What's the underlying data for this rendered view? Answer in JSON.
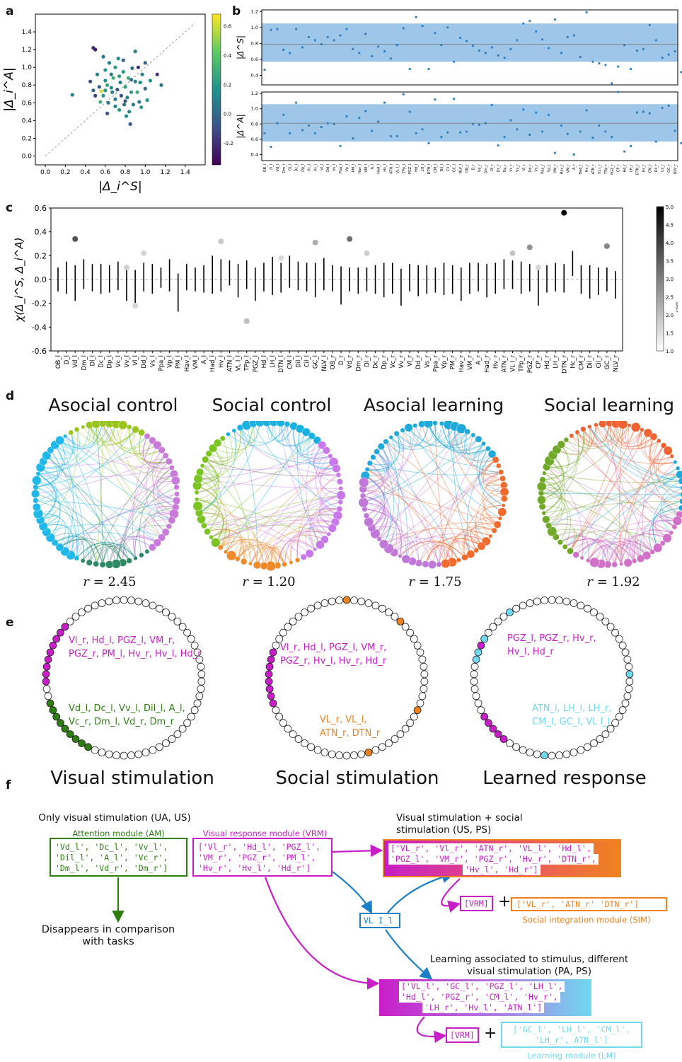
{
  "panel_labels": {
    "a": "a",
    "b": "b",
    "c": "c",
    "d": "d",
    "e": "e",
    "f": "f"
  },
  "regions": [
    "OB_l",
    "D_l",
    "Vd_l",
    "Dm_l",
    "Dl_l",
    "Dc_l",
    "Dp_l",
    "Vc_l",
    "Vv_l",
    "Vl_l",
    "Dd_l",
    "Vs_l",
    "Ppa_l",
    "Vp_l",
    "PM_l",
    "Hav_l",
    "VM_l",
    "A_l",
    "Had_l",
    "Hv_l",
    "ATN_l",
    "VL I_l",
    "TPp_l",
    "PGZ_l",
    "Hd_l",
    "LH_l",
    "DTN_l",
    "CM_l",
    "Dil_l",
    "Cil_l",
    "GC_l",
    "NLV_l",
    "OB_r",
    "D_r",
    "Vd_r",
    "Dm_r",
    "Dl_r",
    "Dc_r",
    "Dp_r",
    "Vc_r",
    "Vv_r",
    "Vl_r",
    "Dd_r",
    "Vs_r",
    "Ppa_r",
    "Vp_r",
    "PM_r",
    "Hav_r",
    "VM_r",
    "A_r",
    "Had_r",
    "Hv_r",
    "ATN_r",
    "VL I_r",
    "TPp_r",
    "PGZ_r",
    "CP_r",
    "Hd_r",
    "LH_r",
    "DTN_r",
    "Hc_r",
    "CM_r",
    "Dil_r",
    "Cil_r",
    "GC_r",
    "NLV_r"
  ],
  "chart_data": [
    {
      "id": "a",
      "type": "scatter",
      "xlabel": "|Δ_i^S|",
      "ylabel": "|Δ_i^A|",
      "xlim": [
        -0.1,
        1.6
      ],
      "ylim": [
        -0.1,
        1.6
      ],
      "xticks": [
        "0.0",
        "0.2",
        "0.4",
        "0.6",
        "0.8",
        "1.0",
        "1.2",
        "1.4"
      ],
      "yticks": [
        "0.0",
        "0.2",
        "0.4",
        "0.6",
        "0.8",
        "1.0",
        "1.2",
        "1.4"
      ],
      "colorbar_ticks": [
        "0.6",
        "0.4",
        "0.2",
        "0.0",
        "-0.2"
      ],
      "colorbar_range": [
        -0.35,
        0.68
      ],
      "diagonal": true,
      "points": [
        [
          0.27,
          0.69,
          0.1
        ],
        [
          0.45,
          0.84,
          -0.1
        ],
        [
          0.48,
          1.22,
          -0.2
        ],
        [
          0.5,
          1.2,
          -0.25
        ],
        [
          0.48,
          0.74,
          0.0
        ],
        [
          0.5,
          0.68,
          -0.15
        ],
        [
          0.52,
          0.92,
          0.1
        ],
        [
          0.54,
          0.78,
          -0.05
        ],
        [
          0.55,
          0.61,
          0.3
        ],
        [
          0.56,
          0.73,
          0.6
        ],
        [
          0.58,
          0.68,
          0.2
        ],
        [
          0.6,
          0.85,
          0.15
        ],
        [
          0.6,
          0.97,
          0.2
        ],
        [
          0.62,
          0.8,
          0.25
        ],
        [
          0.63,
          0.6,
          0.05
        ],
        [
          0.64,
          1.05,
          0.1
        ],
        [
          0.66,
          0.92,
          0.05
        ],
        [
          0.67,
          0.72,
          0.1
        ],
        [
          0.68,
          0.88,
          0.3
        ],
        [
          0.7,
          1.0,
          0.2
        ],
        [
          0.7,
          0.64,
          0.05
        ],
        [
          0.72,
          0.75,
          -0.05
        ],
        [
          0.73,
          1.1,
          0.15
        ],
        [
          0.74,
          0.52,
          0.2
        ],
        [
          0.75,
          0.83,
          0.1
        ],
        [
          0.76,
          0.68,
          -0.1
        ],
        [
          0.78,
          0.95,
          0.2
        ],
        [
          0.78,
          1.08,
          -0.05
        ],
        [
          0.79,
          0.58,
          0.0
        ],
        [
          0.8,
          0.78,
          0.25
        ],
        [
          0.81,
          0.45,
          0.15
        ],
        [
          0.82,
          0.66,
          0.1
        ],
        [
          0.83,
          0.88,
          0.3
        ],
        [
          0.84,
          0.5,
          0.1
        ],
        [
          0.85,
          0.36,
          -0.05
        ],
        [
          0.86,
          0.72,
          0.2
        ],
        [
          0.87,
          0.99,
          0.0
        ],
        [
          0.88,
          0.58,
          0.05
        ],
        [
          0.9,
          0.84,
          0.1
        ],
        [
          0.92,
          0.72,
          0.3
        ],
        [
          0.93,
          1.0,
          -0.2
        ],
        [
          0.94,
          0.61,
          0.05
        ],
        [
          0.95,
          0.83,
          0.15
        ],
        [
          0.96,
          0.55,
          0.2
        ],
        [
          0.97,
          0.92,
          0.1
        ],
        [
          1.0,
          0.76,
          0.0
        ],
        [
          1.02,
          0.63,
          0.2
        ],
        [
          1.05,
          0.85,
          0.15
        ],
        [
          1.12,
          0.92,
          -0.2
        ],
        [
          1.16,
          0.8,
          0.05
        ],
        [
          0.62,
          0.48,
          -0.1
        ],
        [
          0.58,
          1.12,
          0.05
        ],
        [
          0.9,
          1.18,
          0.1
        ],
        [
          1.0,
          1.05,
          0.0
        ],
        [
          0.7,
          0.56,
          0.1
        ],
        [
          0.66,
          0.77,
          0.15
        ],
        [
          0.8,
          0.62,
          -0.05
        ],
        [
          0.74,
          0.9,
          0.25
        ],
        [
          0.86,
          0.86,
          0.0
        ],
        [
          0.6,
          0.74,
          0.2
        ]
      ]
    },
    {
      "id": "b_top",
      "type": "scatter",
      "ylabel": "|Δ^S|",
      "ylim": [
        0.28,
        1.22
      ],
      "yticks": [
        "0.4",
        "0.6",
        "0.8",
        "1.0",
        "1.2"
      ],
      "mean": 0.79,
      "band": [
        0.57,
        1.05
      ],
      "values": [
        0.47,
        0.97,
        0.98,
        0.72,
        0.68,
        0.98,
        0.75,
        0.88,
        0.84,
        0.79,
        0.88,
        0.84,
        0.9,
        0.98,
        0.73,
        0.68,
        0.92,
        0.64,
        0.76,
        0.7,
        0.61,
        0.78,
        0.99,
        0.48,
        1.13,
        1.02,
        0.48,
        0.93,
        0.78,
        1.0,
        0.57,
        0.87,
        0.83,
        0.77,
        0.71,
        0.68,
        0.75,
        0.65,
        0.62,
        0.73,
        0.84,
        1.05,
        1.08,
        0.95,
        0.85,
        0.74,
        1.1,
        0.68,
        0.88,
        0.9,
        0.63,
        1.19,
        0.57,
        0.55,
        0.53,
        0.3,
        0.51,
        0.78,
        0.48,
        0.71,
        0.73,
        1.03,
        0.84,
        0.62,
        0.66,
        0.7,
        0.44,
        0.76
      ]
    },
    {
      "id": "b_bottom",
      "type": "scatter",
      "ylabel": "|Δ^A|",
      "ylim": [
        0.32,
        1.22
      ],
      "yticks": [
        "0.4",
        "0.6",
        "0.8",
        "1.0",
        "1.2"
      ],
      "mean": 0.81,
      "band": [
        0.57,
        1.06
      ],
      "values": [
        0.68,
        0.5,
        0.81,
        0.92,
        0.68,
        1.08,
        0.72,
        0.78,
        0.68,
        0.76,
        0.81,
        0.8,
        0.51,
        0.9,
        0.61,
        0.88,
        0.97,
        0.71,
        0.83,
        1.08,
        0.64,
        0.64,
        1.19,
        0.96,
        0.68,
        0.73,
        0.55,
        1.12,
        0.63,
        0.69,
        1.13,
        0.69,
        0.7,
        0.8,
        0.79,
        0.81,
        1.05,
        0.52,
        0.63,
        0.85,
        0.73,
        0.99,
        0.66,
        0.95,
        0.7,
        0.92,
        0.42,
        0.78,
        0.67,
        0.4,
        0.7,
        0.98,
        0.62,
        0.78,
        0.7,
        0.63,
        1.22,
        0.44,
        0.51,
        0.95,
        0.96,
        0.94,
        0.57,
        1.01,
        1.04,
        0.71,
        0.55,
        0.79
      ]
    },
    {
      "id": "c",
      "type": "errorbar",
      "ylabel": "χ(Δ_i^S, Δ_i^A)",
      "ylim": [
        -0.6,
        0.6
      ],
      "yticks": [
        "0.6",
        "0.4",
        "0.2",
        "0.0",
        "-0.2",
        "-0.4",
        "-0.6"
      ],
      "colorbar_ticks": [
        "5.0",
        "4.5",
        "4.0",
        "3.5",
        "3.0",
        "2.5",
        "2.0",
        "1.5",
        "1.0"
      ],
      "colorbar_label": "z-score",
      "colorbar_range": [
        1.0,
        5.0
      ],
      "bars": [
        [
          -0.1,
          0.1
        ],
        [
          -0.12,
          0.15
        ],
        [
          -0.18,
          0.12
        ],
        [
          -0.08,
          0.17
        ],
        [
          -0.1,
          0.13
        ],
        [
          -0.12,
          0.13
        ],
        [
          -0.11,
          0.12
        ],
        [
          -0.09,
          0.15
        ],
        [
          -0.18,
          0.1
        ],
        [
          -0.2,
          0.08
        ],
        [
          -0.1,
          0.14
        ],
        [
          -0.12,
          0.13
        ],
        [
          -0.07,
          0.1
        ],
        [
          -0.1,
          0.17
        ],
        [
          -0.27,
          0.05
        ],
        [
          -0.09,
          0.13
        ],
        [
          -0.1,
          0.1
        ],
        [
          -0.11,
          0.12
        ],
        [
          -0.12,
          0.2
        ],
        [
          -0.1,
          0.17
        ],
        [
          -0.05,
          0.16
        ],
        [
          -0.15,
          0.13
        ],
        [
          -0.08,
          0.16
        ],
        [
          -0.18,
          0.1
        ],
        [
          -0.1,
          0.14
        ],
        [
          -0.13,
          0.19
        ],
        [
          -0.11,
          0.14
        ],
        [
          -0.07,
          0.2
        ],
        [
          -0.09,
          0.15
        ],
        [
          -0.1,
          0.14
        ],
        [
          -0.15,
          0.14
        ],
        [
          -0.09,
          0.18
        ],
        [
          -0.1,
          0.12
        ],
        [
          -0.21,
          0.11
        ],
        [
          -0.1,
          0.1
        ],
        [
          -0.12,
          0.1
        ],
        [
          -0.1,
          0.1
        ],
        [
          -0.12,
          0.12
        ],
        [
          -0.15,
          0.14
        ],
        [
          -0.12,
          0.14
        ],
        [
          -0.22,
          0.09
        ],
        [
          -0.1,
          0.13
        ],
        [
          -0.14,
          0.12
        ],
        [
          -0.12,
          0.12
        ],
        [
          -0.11,
          0.1
        ],
        [
          -0.13,
          0.14
        ],
        [
          -0.12,
          0.12
        ],
        [
          -0.18,
          0.1
        ],
        [
          -0.12,
          0.14
        ],
        [
          -0.1,
          0.14
        ],
        [
          -0.15,
          0.13
        ],
        [
          -0.12,
          0.14
        ],
        [
          -0.08,
          0.17
        ],
        [
          -0.08,
          0.16
        ],
        [
          -0.12,
          0.15
        ],
        [
          -0.1,
          0.13
        ],
        [
          -0.22,
          0.08
        ],
        [
          -0.11,
          0.12
        ],
        [
          -0.1,
          0.14
        ],
        [
          -0.11,
          0.13
        ],
        [
          0.03,
          0.24
        ],
        [
          -0.12,
          0.12
        ],
        [
          -0.16,
          0.12
        ],
        [
          -0.13,
          0.1
        ],
        [
          -0.1,
          0.1
        ],
        [
          -0.16,
          0.07
        ]
      ],
      "points": [
        [
          2,
          0.34,
          3.7
        ],
        [
          8,
          0.1,
          1.5
        ],
        [
          9,
          -0.22,
          1.4
        ],
        [
          10,
          0.22,
          1.4
        ],
        [
          19,
          0.32,
          1.6
        ],
        [
          22,
          -0.35,
          1.8
        ],
        [
          26,
          0.18,
          1.3
        ],
        [
          30,
          0.31,
          2.1
        ],
        [
          34,
          0.34,
          3.2
        ],
        [
          36,
          0.22,
          1.5
        ],
        [
          53,
          0.22,
          1.7
        ],
        [
          55,
          0.27,
          2.6
        ],
        [
          56,
          0.1,
          1.4
        ],
        [
          59,
          0.56,
          5.0
        ],
        [
          64,
          0.28,
          2.8
        ]
      ]
    }
  ],
  "networks": [
    {
      "title": "Asocial control",
      "r_label": "r",
      "r_value": "= 2.45"
    },
    {
      "title": "Social control",
      "r_label": "r",
      "r_value": "= 1.20"
    },
    {
      "title": "Asocial learning",
      "r_label": "r",
      "r_value": "= 1.75"
    },
    {
      "title": "Social learning",
      "r_label": "r",
      "r_value": "= 1.92"
    }
  ],
  "modules_e": [
    {
      "title": "Visual stimulation",
      "text1": "Vl_r, Hd_l, PGZ_l, VM_r, PGZ_r, PM_l, Hv_r, Hv_l, Hd_r",
      "text2": "Vd_l, Dc_l, Vv_l, Dil_l, A_l, Vc_r, Dm_l, Vd_r, Dm_r"
    },
    {
      "title": "Social stimulation",
      "text1": "Vl_r, Hd_l, PGZ_l, VM_r, PGZ_r, Hv_l, Hv_r, Hd_r",
      "text2": "VL_r, VL_l, ATN_r, DTN_r"
    },
    {
      "title": "Learned response",
      "text1": "PGZ_l,  PGZ_r, Hv_r, Hv_l, Hd_r",
      "text2": "ATN_l, LH_l, LH_r, CM_l, GC_l, VL I_l"
    }
  ],
  "flow": {
    "only_visual": "Only visual stimulation (UA, US)",
    "am_label": "Attention module (AM)",
    "am_line1": "'Vd_l',  'Dc_l',  'Vv_l',",
    "am_line2": "'Dil_l',  'A_l',  'Vc_r',",
    "am_line3": "'Dm_l', 'Vd_r', 'Dm_r']",
    "disappears": "Disappears in comparison with tasks",
    "vrm_label": "Visual response module (VRM)",
    "vrm_line1": "['Vl_r', 'Hd_l', 'PGZ_l',",
    "vrm_line2": "'VM_r', 'PGZ_r', 'PM_l',",
    "vrm_line3": "'Hv_r', 'Hv_l', 'Hd_r']",
    "vs_social": "Visual stimulation + social stimulation (US, PS)",
    "os_line1": "['VL_r', 'Vl_r', 'ATN_r', 'VL_l', 'Hd_l',",
    "os_line2": "'PGZ_l', 'VM_r', 'PGZ_r', 'Hv_r', 'DTN_r',",
    "os_line3": "'Hv_l', 'Hd_r']",
    "vli": "VL I_l",
    "vrm_tag": "[VRM]",
    "plus": "+",
    "sim_list": "['VL_r', 'ATN_r' 'DTN_r']",
    "sim_label": "Social integration module (SIM)",
    "learning": "Learning associated to stimulus, different visual stimulation (PA, PS)",
    "lb_line1": "['VL_l', 'GC_l', 'PGZ_l', 'LH_l',",
    "lb_line2": "'Hd_l', 'PGZ_r', 'CM_l', 'Hv_r',",
    "lb_line3": "'LH_r', 'Hv_l', 'ATN_l']",
    "lm_line1": "['GC_l', 'LH_l', 'CM_l',",
    "lm_line2": "'LH_r', ATN_l']",
    "lm_label": "Learning module (LM)"
  },
  "colors": {
    "magenta": "#c81ec8",
    "green": "#2e7d12",
    "orange": "#f0821e",
    "cyan": "#70d8f0",
    "blue": "#1a7fc4",
    "band": "#9ec6e8",
    "point": "#2f7fc1"
  }
}
